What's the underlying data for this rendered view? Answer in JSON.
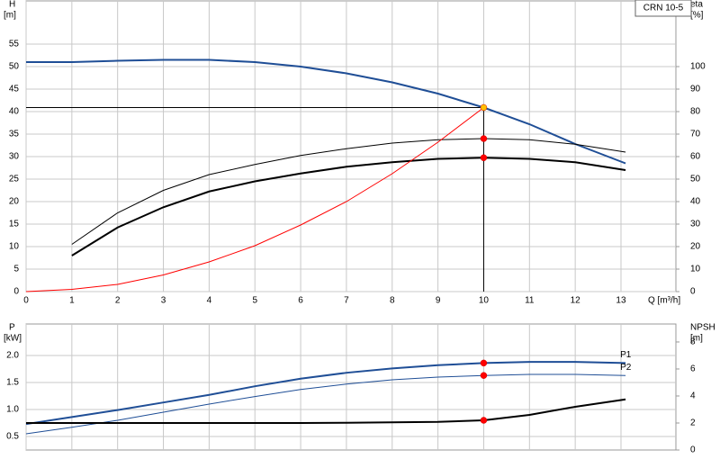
{
  "chart_data": [
    {
      "type": "line",
      "title": "CRN 10-5",
      "ylabel": "H",
      "yunit": "[m]",
      "y2label": "eta",
      "y2unit": "[%]",
      "xlabel": "Q [m³/h]",
      "xlim": [
        0,
        14.2
      ],
      "xticks": [
        0,
        1,
        2,
        3,
        4,
        5,
        6,
        7,
        8,
        9,
        10,
        11,
        12,
        13
      ],
      "ylim": [
        0,
        64.6
      ],
      "yticks": [
        0,
        5,
        10,
        15,
        20,
        25,
        30,
        35,
        40,
        45,
        50,
        55
      ],
      "y2lim": [
        0,
        129.2
      ],
      "y2ticks": [
        0,
        10,
        20,
        30,
        40,
        50,
        60,
        70,
        80,
        90,
        100
      ],
      "grid": true,
      "series": [
        {
          "color": "#1f4e96",
          "width": 2,
          "x": [
            0,
            1,
            2,
            3,
            4,
            5,
            6,
            7,
            8,
            9,
            10,
            11,
            12,
            13.1
          ],
          "values": [
            51,
            51,
            51.3,
            51.5,
            51.5,
            51,
            50,
            48.5,
            46.5,
            44,
            40.9,
            37.2,
            32.8,
            28.5
          ]
        },
        {
          "color": "#000000",
          "width": 1,
          "axis": "y2",
          "x": [
            1,
            2,
            3,
            4,
            5,
            6,
            7,
            8,
            9,
            10,
            11,
            12,
            13.1
          ],
          "values": [
            21,
            35,
            45,
            52,
            56.5,
            60.5,
            63.5,
            66,
            67.5,
            68,
            67.5,
            65.5,
            62
          ]
        },
        {
          "color": "#000000",
          "width": 2,
          "axis": "y2",
          "x": [
            1,
            2,
            3,
            4,
            5,
            6,
            7,
            8,
            9,
            10,
            11,
            12,
            13.1
          ],
          "values": [
            16,
            28.5,
            37.5,
            44.5,
            49,
            52.5,
            55.5,
            57.5,
            59,
            59.5,
            59,
            57.5,
            54
          ]
        },
        {
          "color": "#ff0000",
          "width": 1,
          "x": [
            0,
            1,
            2,
            3,
            4,
            5,
            6,
            7,
            8,
            9,
            10
          ],
          "values": [
            0,
            0.5,
            1.6,
            3.7,
            6.6,
            10.2,
            14.8,
            20,
            26.2,
            33.2,
            40.9
          ]
        }
      ],
      "markers": [
        {
          "x": 10,
          "y": 40.9,
          "color": "#ffc000",
          "duty_lines": true
        },
        {
          "x": 10,
          "y": 68,
          "color": "#ff0000",
          "axis": "y2"
        },
        {
          "x": 10,
          "y": 59.5,
          "color": "#ff0000",
          "axis": "y2"
        }
      ]
    },
    {
      "type": "line",
      "ylabel": "P",
      "yunit": "[kW]",
      "y2label": "NPSH",
      "y2unit": "[m]",
      "xlim": [
        0,
        14.2
      ],
      "xticks": [
        0,
        1,
        2,
        3,
        4,
        5,
        6,
        7,
        8,
        9,
        10,
        11,
        12,
        13
      ],
      "ylim": [
        0.25,
        2.583
      ],
      "yticks": [
        0.5,
        {
          "value": 1,
          "label": "1.0"
        },
        1.5,
        {
          "value": 2,
          "label": "2.0"
        }
      ],
      "y2lim": [
        0,
        9.33
      ],
      "y2ticks": [
        0,
        2,
        4,
        6,
        8
      ],
      "grid": true,
      "series": [
        {
          "name": "P1",
          "color": "#1f4e96",
          "width": 2,
          "x": [
            0,
            1,
            2,
            3,
            4,
            5,
            6,
            7,
            8,
            9,
            10,
            11,
            12,
            13.1
          ],
          "values": [
            0.73,
            0.86,
            0.99,
            1.13,
            1.27,
            1.43,
            1.57,
            1.68,
            1.76,
            1.82,
            1.86,
            1.88,
            1.88,
            1.86
          ]
        },
        {
          "name": "P2",
          "color": "#1f4e96",
          "width": 1,
          "x": [
            0,
            1,
            2,
            3,
            4,
            5,
            6,
            7,
            8,
            9,
            10,
            11,
            12,
            13.1
          ],
          "values": [
            0.55,
            0.67,
            0.8,
            0.95,
            1.1,
            1.24,
            1.37,
            1.47,
            1.55,
            1.6,
            1.63,
            1.65,
            1.65,
            1.63
          ]
        },
        {
          "color": "#000000",
          "width": 2,
          "axis": "y2",
          "x": [
            0,
            1,
            2,
            3,
            4,
            5,
            6,
            7,
            8,
            9,
            10,
            11,
            12,
            13.1
          ],
          "values": [
            2,
            2,
            2,
            2,
            2,
            2,
            2,
            2.02,
            2.05,
            2.08,
            2.2,
            2.6,
            3.2,
            3.75
          ]
        }
      ],
      "markers": [
        {
          "x": 10,
          "y": 1.86,
          "color": "#ff0000"
        },
        {
          "x": 10,
          "y": 1.63,
          "color": "#ff0000"
        },
        {
          "x": 10,
          "y": 2.2,
          "color": "#ff0000",
          "axis": "y2"
        }
      ]
    }
  ]
}
